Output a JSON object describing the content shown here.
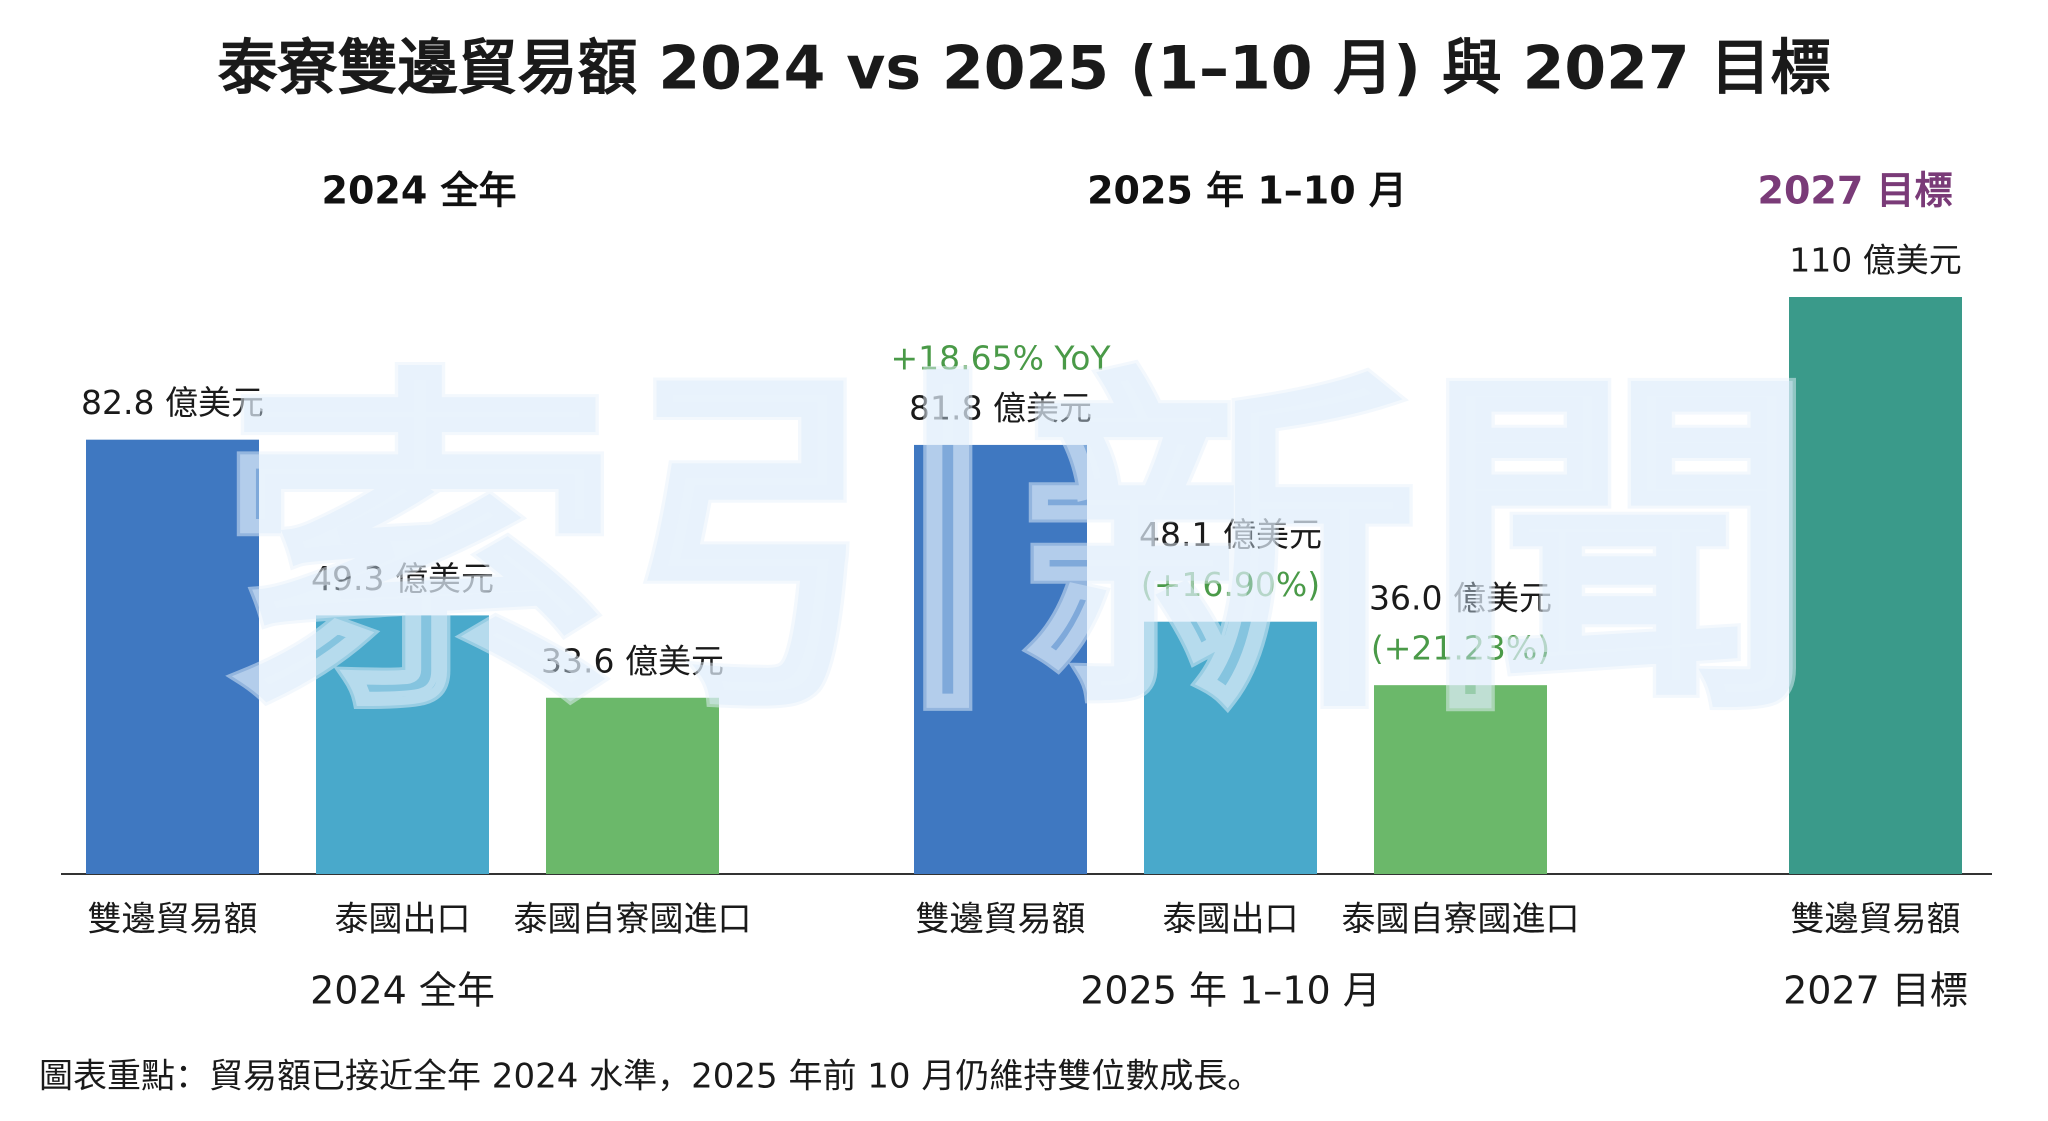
{
  "chart_data": {
    "type": "bar",
    "title": "泰寮雙邊貿易額 2024 vs 2025 (1–10 月) 與 2027 目標",
    "watermark": "索引新聞",
    "footnote": "圖表重點：貿易額已接近全年 2024 水準，2025 年前 10 月仍維持雙位數成長。",
    "groups": [
      {
        "label": "2024 全年",
        "header_color": "#111111",
        "categories": [
          "雙邊貿易額",
          "泰國出口",
          "泰國自寮國進口"
        ],
        "values": [
          82.8,
          49.3,
          33.6
        ],
        "value_labels": [
          "82.8 億美元",
          "49.3 億美元",
          "33.6 億美元"
        ],
        "notes": [
          null,
          null,
          null
        ],
        "colors": [
          "#3f78c1",
          "#49a9cb",
          "#6bb86a"
        ]
      },
      {
        "label": "2025 年 1–10 月",
        "header_color": "#111111",
        "categories": [
          "雙邊貿易額",
          "泰國出口",
          "泰國自寮國進口"
        ],
        "values": [
          81.8,
          48.1,
          36.0
        ],
        "value_labels": [
          "81.8 億美元",
          "48.1 億美元",
          "36.0 億美元"
        ],
        "notes": [
          "+18.65% YoY",
          "(+16.90%)",
          "(+21.23%)"
        ],
        "colors": [
          "#3f78c1",
          "#49a9cb",
          "#6bb86a"
        ]
      },
      {
        "label": "2027 目標",
        "header_color": "#7a3b78",
        "categories": [
          "雙邊貿易額"
        ],
        "values": [
          110
        ],
        "value_labels": [
          "110 億美元"
        ],
        "notes": [
          null
        ],
        "colors": [
          "#3a9a8a"
        ]
      }
    ]
  }
}
